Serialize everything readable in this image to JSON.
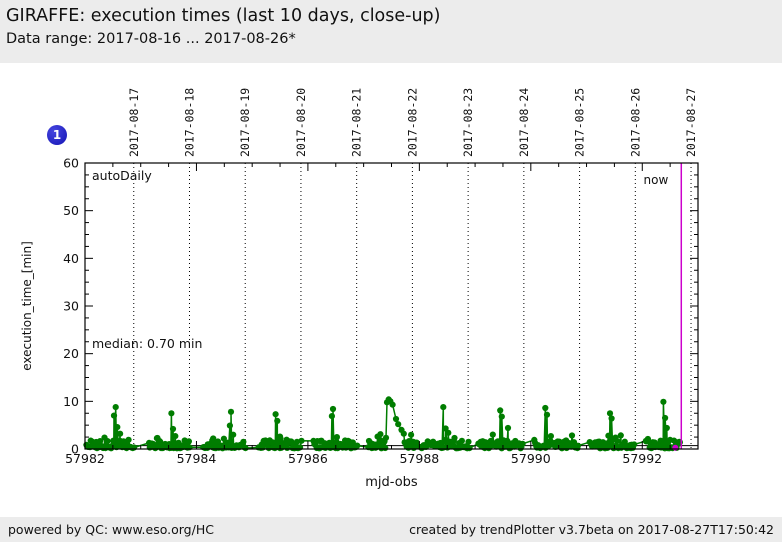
{
  "header": {
    "title": "GIRAFFE: execution times (last 10 days, close-up)",
    "subtitle": "Data range: 2017-08-16 ... 2017-08-26*"
  },
  "badge": {
    "label": "1",
    "color": "#1d1dc0"
  },
  "footer": {
    "left": "powered by QC: www.eso.org/HC",
    "right": "created by trendPlotter v3.7beta on 2017-08-27T17:50:42"
  },
  "chart_data": {
    "type": "scatter",
    "title": "GIRAFFE: execution times (last 10 days, close-up)",
    "xlabel": "mjd-obs",
    "ylabel": "execution_time_[min]",
    "xlim": [
      57982,
      57993.0
    ],
    "ylim": [
      0,
      60
    ],
    "x_major_ticks": [
      57982,
      57984,
      57986,
      57988,
      57990,
      57992
    ],
    "x_minor_step": 0.5,
    "y_major_ticks": [
      0,
      10,
      20,
      30,
      40,
      50,
      60
    ],
    "y_minor_step": 2.5,
    "grid": "vertical-dotted-date-lines",
    "legend_position": "none",
    "date_gridlines": [
      {
        "mjd": 57982.875,
        "label": "2017-08-17"
      },
      {
        "mjd": 57983.875,
        "label": "2017-08-18"
      },
      {
        "mjd": 57984.875,
        "label": "2017-08-19"
      },
      {
        "mjd": 57985.875,
        "label": "2017-08-20"
      },
      {
        "mjd": 57986.875,
        "label": "2017-08-21"
      },
      {
        "mjd": 57987.875,
        "label": "2017-08-22"
      },
      {
        "mjd": 57988.875,
        "label": "2017-08-23"
      },
      {
        "mjd": 57989.875,
        "label": "2017-08-24"
      },
      {
        "mjd": 57990.875,
        "label": "2017-08-25"
      },
      {
        "mjd": 57991.875,
        "label": "2017-08-26"
      },
      {
        "mjd": 57992.875,
        "label": "2017-08-27"
      }
    ],
    "annotations": {
      "flag_label": "autoDaily",
      "median_label": "median: 0.70 min",
      "median_value": 0.7,
      "now_label": "now",
      "now_mjd": 57992.7
    },
    "series_color": "#007d00",
    "now_color": "#cc00cc",
    "marker_radius": 3.1,
    "now_point": [
      57992.7,
      0.25
    ],
    "spikes": [
      [
        57982.35,
        2.4
      ],
      [
        57982.52,
        7.0
      ],
      [
        57982.55,
        8.8
      ],
      [
        57982.58,
        4.6
      ],
      [
        57982.63,
        3.2
      ],
      [
        57983.3,
        2.3
      ],
      [
        57983.55,
        7.5
      ],
      [
        57983.58,
        4.2
      ],
      [
        57983.62,
        2.7
      ],
      [
        57984.3,
        2.2
      ],
      [
        57984.6,
        4.9
      ],
      [
        57984.62,
        7.8
      ],
      [
        57984.66,
        3.0
      ],
      [
        57985.42,
        7.3
      ],
      [
        57985.45,
        5.9
      ],
      [
        57985.5,
        2.6
      ],
      [
        57986.43,
        6.9
      ],
      [
        57986.45,
        8.4
      ],
      [
        57986.52,
        2.5
      ],
      [
        57987.25,
        2.6
      ],
      [
        57987.3,
        3.1
      ],
      [
        57987.42,
        9.8
      ],
      [
        57987.45,
        10.4
      ],
      [
        57987.48,
        10.0
      ],
      [
        57987.52,
        9.3
      ],
      [
        57987.58,
        6.3
      ],
      [
        57987.62,
        5.2
      ],
      [
        57987.68,
        4.0
      ],
      [
        57987.72,
        3.2
      ],
      [
        57988.43,
        8.8
      ],
      [
        57988.47,
        4.3
      ],
      [
        57988.52,
        3.4
      ],
      [
        57988.63,
        2.3
      ],
      [
        57989.45,
        8.1
      ],
      [
        57989.48,
        6.8
      ],
      [
        57989.59,
        4.4
      ],
      [
        57990.26,
        8.6
      ],
      [
        57990.29,
        7.2
      ],
      [
        57990.36,
        2.7
      ],
      [
        57991.42,
        7.5
      ],
      [
        57991.45,
        6.4
      ],
      [
        57991.52,
        2.4
      ],
      [
        57992.38,
        9.9
      ],
      [
        57992.41,
        6.5
      ],
      [
        57992.44,
        4.4
      ],
      [
        57992.5,
        1.9
      ]
    ],
    "baseline_y_range": [
      0.15,
      1.8
    ],
    "baseline_clusters": [
      {
        "x0": 57982.03,
        "x1": 57982.88,
        "n": 46
      },
      {
        "x0": 57983.15,
        "x1": 57983.88,
        "n": 42
      },
      {
        "x0": 57984.12,
        "x1": 57984.88,
        "n": 44
      },
      {
        "x0": 57985.12,
        "x1": 57985.88,
        "n": 44
      },
      {
        "x0": 57986.1,
        "x1": 57986.88,
        "n": 44
      },
      {
        "x0": 57987.08,
        "x1": 57987.4,
        "n": 22
      },
      {
        "x0": 57987.74,
        "x1": 57987.95,
        "n": 14
      },
      {
        "x0": 57988.02,
        "x1": 57988.9,
        "n": 48
      },
      {
        "x0": 57989.06,
        "x1": 57989.85,
        "n": 44
      },
      {
        "x0": 57990.06,
        "x1": 57990.85,
        "n": 44
      },
      {
        "x0": 57991.06,
        "x1": 57991.85,
        "n": 44
      },
      {
        "x0": 57992.06,
        "x1": 57992.68,
        "n": 36
      }
    ]
  }
}
